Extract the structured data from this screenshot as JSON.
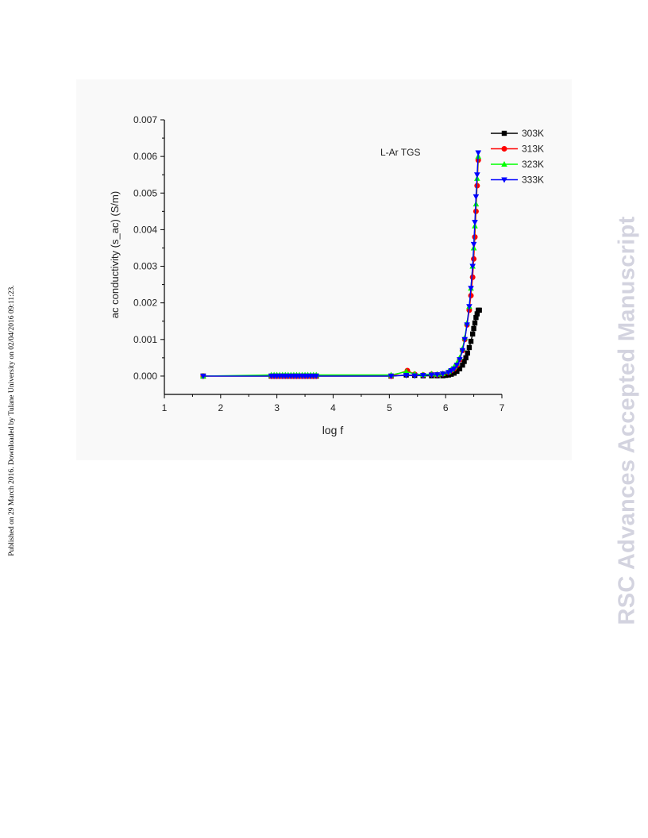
{
  "page": {
    "side_note": "Published on 29 March 2016. Downloaded by Tulane University on 02/04/2016 09:11:23.",
    "watermark": "RSC Advances Accepted Manuscript"
  },
  "chart_data": {
    "type": "line",
    "annotation": "L-Ar TGS",
    "xlabel": "log f",
    "ylabel": "ac conductivity (s_ac) (S/m)",
    "xlim": [
      1,
      7
    ],
    "ylim": [
      -0.0005,
      0.007
    ],
    "x_ticks": [
      "1",
      "2",
      "3",
      "4",
      "5",
      "6",
      "7"
    ],
    "y_ticks": [
      "0.000",
      "0.001",
      "0.002",
      "0.003",
      "0.004",
      "0.005",
      "0.006",
      "0.007"
    ],
    "x_tick_values": [
      1,
      2,
      3,
      4,
      5,
      6,
      7
    ],
    "y_tick_values": [
      0,
      0.001,
      0.002,
      0.003,
      0.004,
      0.005,
      0.006,
      0.007
    ],
    "grid": false,
    "legend_position": "top-right",
    "series": [
      {
        "name": "303K",
        "color": "#000000",
        "marker": "square",
        "x": [
          1.69,
          2.9,
          2.95,
          3.0,
          3.05,
          3.1,
          3.15,
          3.2,
          3.25,
          3.3,
          3.35,
          3.4,
          3.45,
          3.5,
          3.55,
          3.6,
          3.65,
          3.7,
          5.03,
          5.3,
          5.45,
          5.6,
          5.75,
          5.85,
          5.95,
          6.0,
          6.05,
          6.1,
          6.15,
          6.2,
          6.25,
          6.3,
          6.33,
          6.36,
          6.39,
          6.42,
          6.45,
          6.48,
          6.5,
          6.52,
          6.54,
          6.56,
          6.58,
          6.6
        ],
        "y": [
          0.0,
          0.0,
          0.0,
          0.0,
          0.0,
          0.0,
          0.0,
          0.0,
          0.0,
          0.0,
          0.0,
          0.0,
          0.0,
          0.0,
          0.0,
          0.0,
          0.0,
          0.0,
          0.0,
          3e-05,
          2e-05,
          1e-05,
          1e-05,
          1e-05,
          1e-05,
          2e-05,
          3e-05,
          5e-05,
          8e-05,
          0.00013,
          0.0002,
          0.0003,
          0.0004,
          0.0005,
          0.00063,
          0.00078,
          0.00095,
          0.00115,
          0.0013,
          0.00145,
          0.0016,
          0.0017,
          0.0018,
          0.0018
        ]
      },
      {
        "name": "313K",
        "color": "#ff0000",
        "marker": "circle",
        "x": [
          1.69,
          2.9,
          2.95,
          3.0,
          3.05,
          3.1,
          3.15,
          3.2,
          3.25,
          3.3,
          3.35,
          3.4,
          3.45,
          3.5,
          3.55,
          3.6,
          3.65,
          3.7,
          5.03,
          5.32,
          5.45,
          5.6,
          5.75,
          5.85,
          5.95,
          6.05,
          6.1,
          6.15,
          6.2,
          6.25,
          6.3,
          6.34,
          6.38,
          6.42,
          6.45,
          6.48,
          6.5,
          6.52,
          6.54,
          6.56,
          6.58
        ],
        "y": [
          0.0,
          0.0,
          0.0,
          0.0,
          0.0,
          0.0,
          0.0,
          0.0,
          0.0,
          0.0,
          0.0,
          0.0,
          0.0,
          0.0,
          0.0,
          0.0,
          0.0,
          0.0,
          0.0,
          0.00015,
          5e-05,
          3e-05,
          5e-05,
          4e-05,
          6e-05,
          0.0001,
          0.00015,
          0.0002,
          0.0003,
          0.00045,
          0.0007,
          0.001,
          0.0014,
          0.0018,
          0.0022,
          0.0027,
          0.0032,
          0.0038,
          0.0045,
          0.0052,
          0.0059
        ]
      },
      {
        "name": "323K",
        "color": "#00ff00",
        "marker": "triangle-up",
        "x": [
          1.69,
          2.9,
          2.95,
          3.0,
          3.05,
          3.1,
          3.15,
          3.2,
          3.25,
          3.3,
          3.35,
          3.4,
          3.45,
          3.5,
          3.55,
          3.6,
          3.65,
          3.7,
          5.03,
          5.3,
          5.45,
          5.6,
          5.75,
          5.85,
          5.95,
          6.05,
          6.1,
          6.15,
          6.2,
          6.25,
          6.3,
          6.34,
          6.38,
          6.42,
          6.45,
          6.48,
          6.5,
          6.52,
          6.54,
          6.56,
          6.58
        ],
        "y": [
          0.0,
          3e-05,
          3e-05,
          3e-05,
          3e-05,
          3e-05,
          3e-05,
          3e-05,
          3e-05,
          3e-05,
          3e-05,
          3e-05,
          3e-05,
          3e-05,
          3e-05,
          3e-05,
          3e-05,
          3e-05,
          3e-05,
          0.00012,
          6e-05,
          4e-05,
          6e-05,
          5e-05,
          7e-05,
          0.00012,
          0.00018,
          0.00025,
          0.00035,
          0.0005,
          0.00075,
          0.00105,
          0.00145,
          0.0019,
          0.0024,
          0.003,
          0.0035,
          0.0041,
          0.0047,
          0.0054,
          0.006
        ]
      },
      {
        "name": "333K",
        "color": "#0000ff",
        "marker": "triangle-down",
        "x": [
          1.69,
          2.9,
          2.95,
          3.0,
          3.05,
          3.1,
          3.15,
          3.2,
          3.25,
          3.3,
          3.35,
          3.4,
          3.45,
          3.5,
          3.55,
          3.6,
          3.65,
          3.7,
          5.03,
          5.3,
          5.45,
          5.6,
          5.75,
          5.85,
          5.95,
          6.05,
          6.1,
          6.15,
          6.2,
          6.25,
          6.3,
          6.34,
          6.38,
          6.42,
          6.45,
          6.48,
          6.5,
          6.52,
          6.54,
          6.56,
          6.58
        ],
        "y": [
          0.0,
          0.0,
          0.0,
          0.0,
          0.0,
          0.0,
          0.0,
          0.0,
          0.0,
          0.0,
          0.0,
          0.0,
          0.0,
          0.0,
          0.0,
          0.0,
          0.0,
          0.0,
          0.0,
          2e-05,
          1e-05,
          2e-05,
          3e-05,
          4e-05,
          6e-05,
          0.0001,
          0.00015,
          0.0002,
          0.0003,
          0.00045,
          0.0007,
          0.001,
          0.0014,
          0.0019,
          0.0024,
          0.003,
          0.0036,
          0.0042,
          0.0049,
          0.0055,
          0.0061
        ]
      }
    ]
  }
}
